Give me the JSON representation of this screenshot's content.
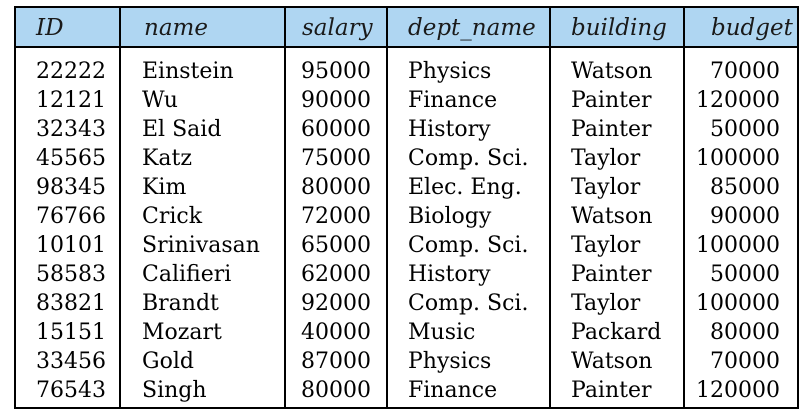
{
  "table": {
    "columns": [
      "ID",
      "name",
      "salary",
      "dept_name",
      "building",
      "budget"
    ],
    "rows": [
      [
        "22222",
        "Einstein",
        "95000",
        "Physics",
        "Watson",
        "70000"
      ],
      [
        "12121",
        "Wu",
        "90000",
        "Finance",
        "Painter",
        "120000"
      ],
      [
        "32343",
        "El Said",
        "60000",
        "History",
        "Painter",
        "50000"
      ],
      [
        "45565",
        "Katz",
        "75000",
        "Comp. Sci.",
        "Taylor",
        "100000"
      ],
      [
        "98345",
        "Kim",
        "80000",
        "Elec. Eng.",
        "Taylor",
        "85000"
      ],
      [
        "76766",
        "Crick",
        "72000",
        "Biology",
        "Watson",
        "90000"
      ],
      [
        "10101",
        "Srinivasan",
        "65000",
        "Comp. Sci.",
        "Taylor",
        "100000"
      ],
      [
        "58583",
        "Califieri",
        "62000",
        "History",
        "Painter",
        "50000"
      ],
      [
        "83821",
        "Brandt",
        "92000",
        "Comp. Sci.",
        "Taylor",
        "100000"
      ],
      [
        "15151",
        "Mozart",
        "40000",
        "Music",
        "Packard",
        "80000"
      ],
      [
        "33456",
        "Gold",
        "87000",
        "Physics",
        "Watson",
        "70000"
      ],
      [
        "76543",
        "Singh",
        "80000",
        "Finance",
        "Painter",
        "120000"
      ]
    ]
  },
  "colors": {
    "header_background": "#afd6f2",
    "border": "#000000"
  }
}
